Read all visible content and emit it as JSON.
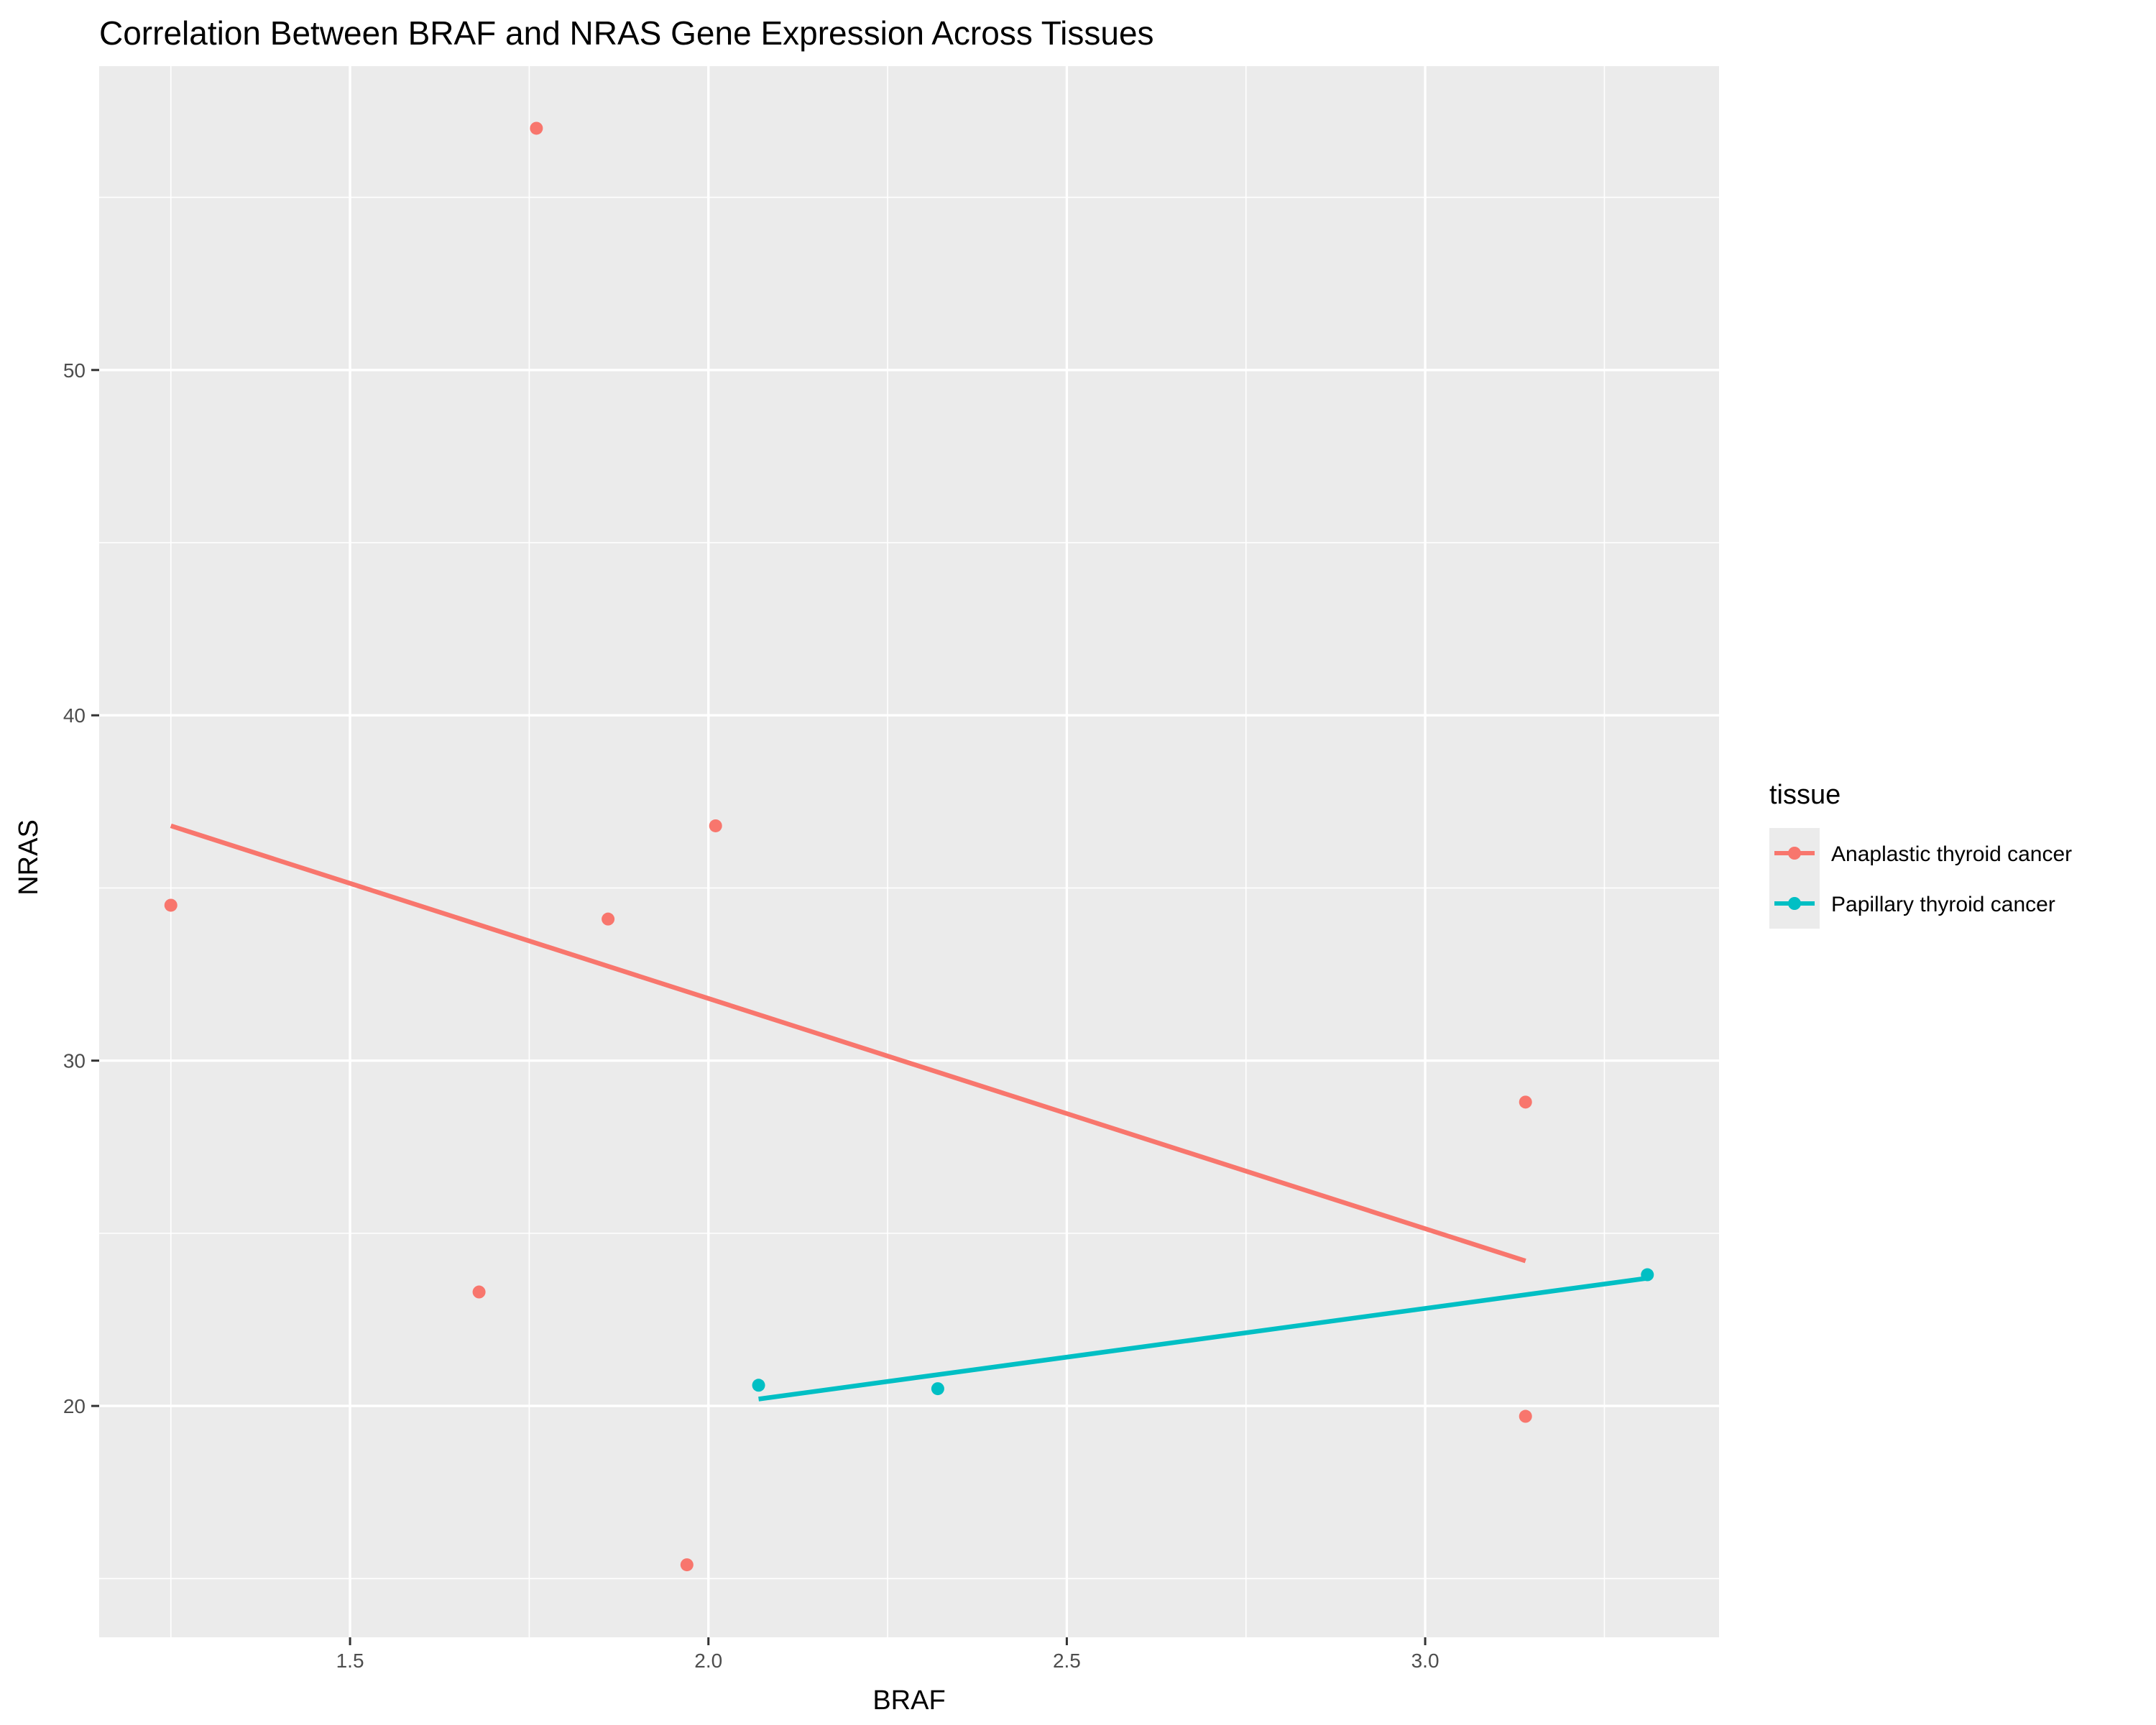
{
  "chart_data": {
    "type": "scatter",
    "title": "Correlation Between BRAF and NRAS Gene Expression Across Tissues",
    "xlabel": "BRAF",
    "ylabel": "NRAS",
    "xlim": [
      1.15,
      3.41
    ],
    "ylim": [
      13.3,
      58.8
    ],
    "xticks": [
      1.5,
      2.0,
      2.5,
      3.0
    ],
    "xtick_labels": [
      "1.5",
      "2.0",
      "2.5",
      "3.0"
    ],
    "yticks": [
      20,
      30,
      40,
      50
    ],
    "ytick_labels": [
      "20",
      "30",
      "40",
      "50"
    ],
    "grid": true,
    "legend": {
      "title": "tissue",
      "position": "right"
    },
    "series": [
      {
        "name": "Anaplastic thyroid cancer",
        "color": "#F8766D",
        "points": [
          {
            "x": 1.25,
            "y": 34.5
          },
          {
            "x": 1.68,
            "y": 23.3
          },
          {
            "x": 1.76,
            "y": 57.0
          },
          {
            "x": 1.86,
            "y": 34.1
          },
          {
            "x": 1.97,
            "y": 15.4
          },
          {
            "x": 2.01,
            "y": 36.8
          },
          {
            "x": 3.14,
            "y": 28.8
          },
          {
            "x": 3.14,
            "y": 19.7
          }
        ],
        "fit": {
          "x": [
            1.25,
            3.14
          ],
          "y": [
            36.8,
            24.2
          ]
        }
      },
      {
        "name": "Papillary thyroid cancer",
        "color": "#00BFC4",
        "points": [
          {
            "x": 2.07,
            "y": 20.6
          },
          {
            "x": 2.32,
            "y": 20.5
          },
          {
            "x": 3.31,
            "y": 23.8
          }
        ],
        "fit": {
          "x": [
            2.07,
            3.31
          ],
          "y": [
            20.2,
            23.7
          ]
        }
      }
    ]
  }
}
